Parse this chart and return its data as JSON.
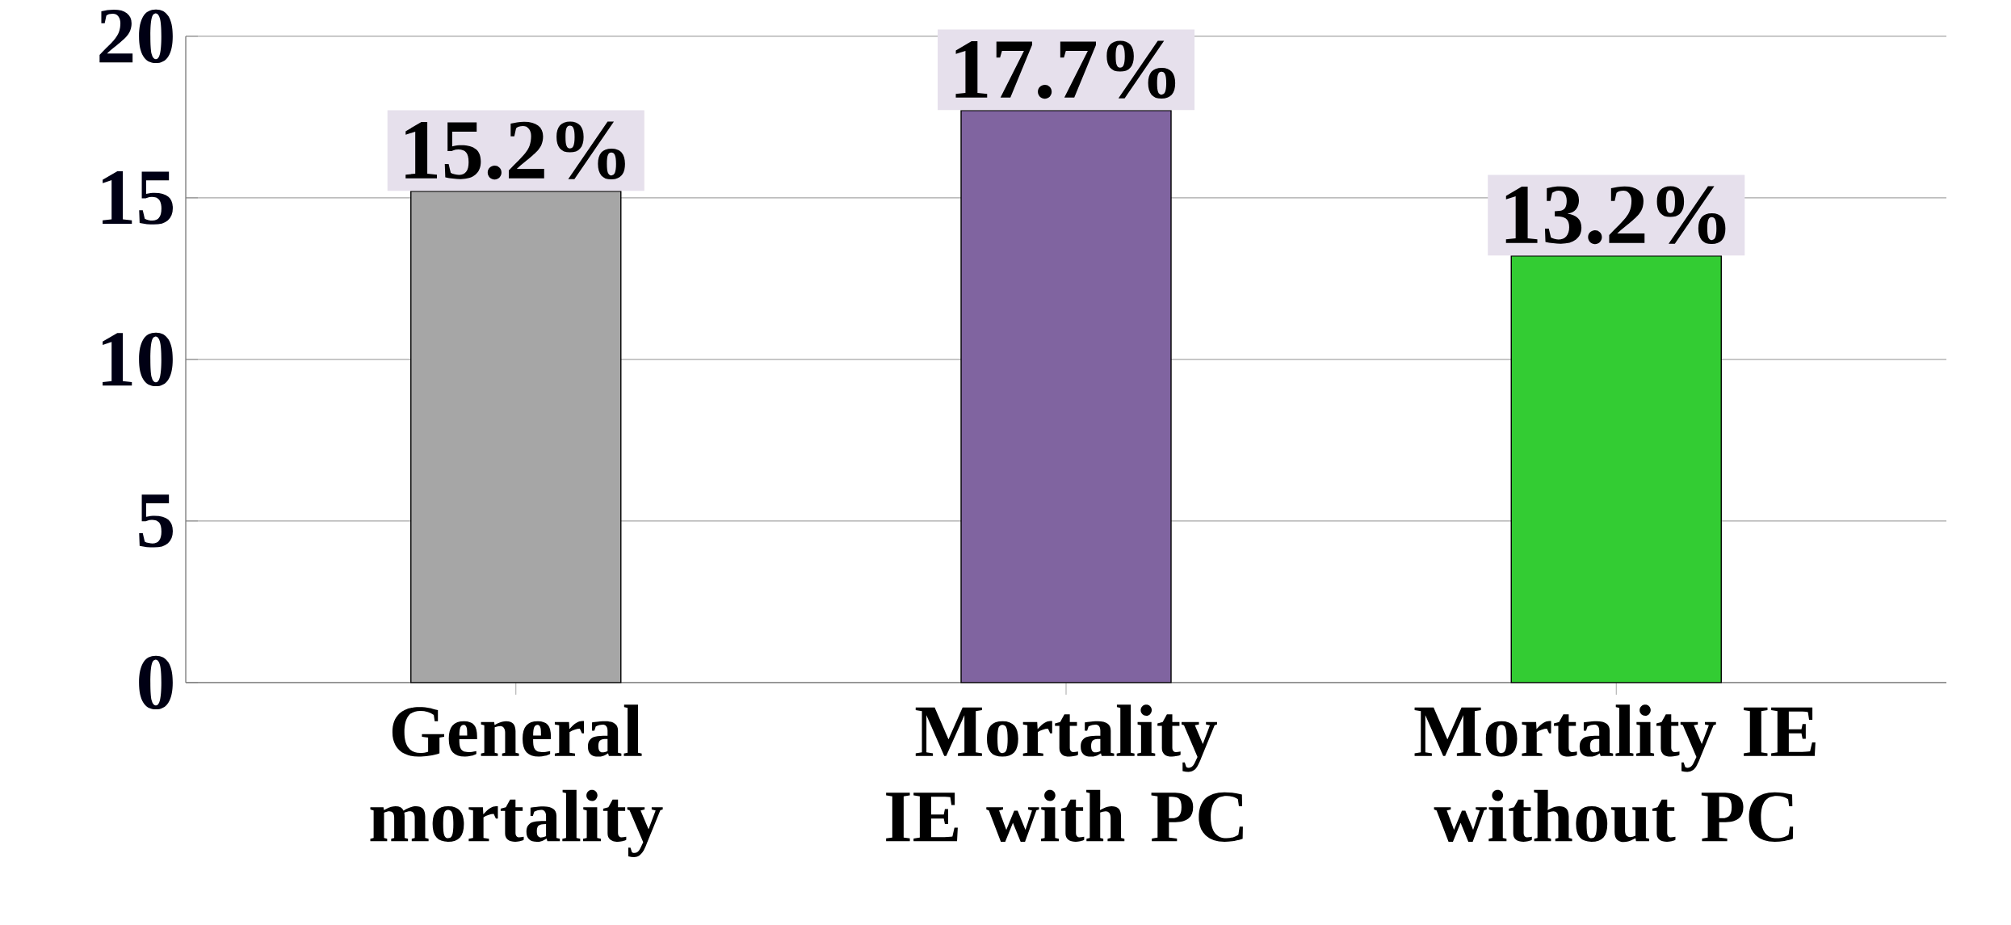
{
  "chart_data": {
    "type": "bar",
    "categories": [
      "General mortality",
      "Mortality IE with PC",
      "Mortality IE without PC"
    ],
    "values": [
      15.2,
      17.7,
      13.2
    ],
    "value_labels": [
      "15.2%",
      "17.7%",
      "13.2%"
    ],
    "colors": [
      "#a6a6a6",
      "#8064a0",
      "#33cc33"
    ],
    "ylim": [
      0,
      20
    ],
    "yticks": [
      0,
      5,
      10,
      15,
      20
    ],
    "grid": "y"
  }
}
